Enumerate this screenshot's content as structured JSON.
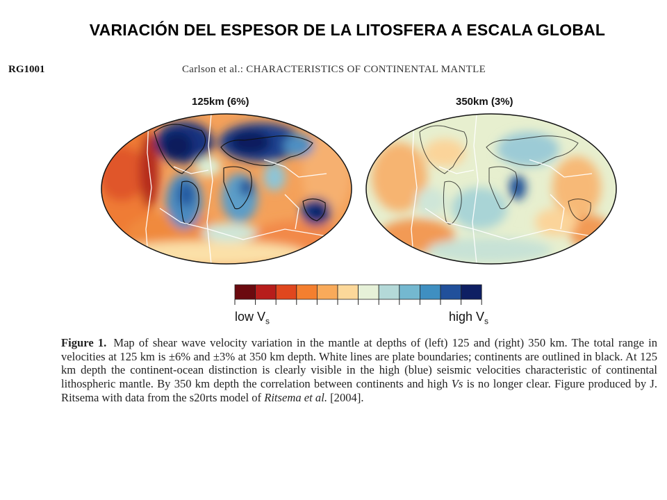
{
  "slide": {
    "title": "VARIACIÓN DEL ESPESOR DE LA LITOSFERA A ESCALA GLOBAL"
  },
  "header": {
    "page_id": "RG1001",
    "running_head": "Carlson et al.: CHARACTERISTICS OF CONTINENTAL MANTLE"
  },
  "maps": [
    {
      "label": "125km (6%)"
    },
    {
      "label": "350km (3%)"
    }
  ],
  "colorbar": {
    "low_label": "low V",
    "high_label": "high V",
    "subscript": "s",
    "colors": [
      "#6b0a0f",
      "#b71d1b",
      "#e0471e",
      "#f47f2f",
      "#f9aa5a",
      "#fcd89a",
      "#e6f1d8",
      "#b4d9d8",
      "#74b8d0",
      "#3f8fc1",
      "#21509b",
      "#0e1f63"
    ]
  },
  "caption": {
    "figure_label": "Figure 1.",
    "text_1": "Map of shear wave velocity variation in the mantle at depths of (left) 125 and (right) 350 km. The total range in velocities at 125 km is ±6% and ±3% at 350 km depth. White lines are plate boundaries; continents are outlined in black. At 125 km depth the continent-ocean distinction is clearly visible in the high (blue) seismic velocities characteristic of continental lithospheric mantle. By 350 km depth the correlation between continents and high ",
    "vs_italic": "Vs",
    "text_2": " is no longer clear. Figure produced by J. Ritsema with data from the s20rts model of ",
    "ritsema_italic": "Ritsema et al.",
    "text_3": " [2004]."
  }
}
